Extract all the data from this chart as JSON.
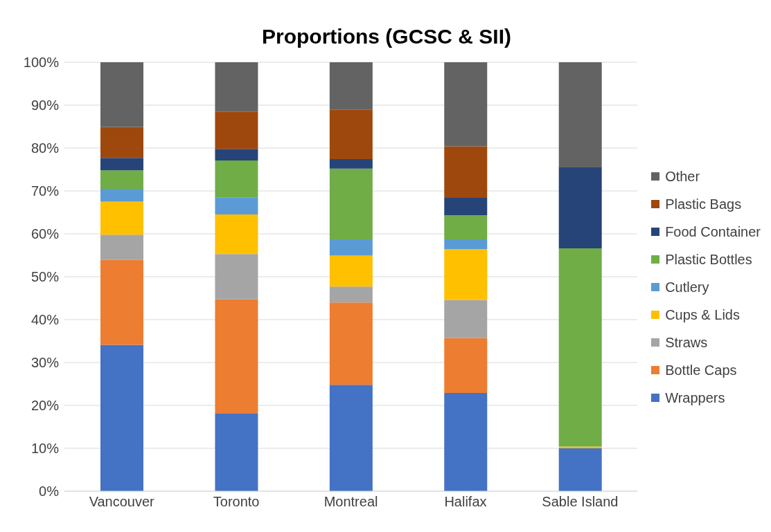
{
  "chart_data": {
    "type": "bar",
    "title": "Proportions (GCSC & SII)",
    "stacked": true,
    "categories": [
      "Vancouver",
      "Toronto",
      "Montreal",
      "Halifax",
      "Sable Island"
    ],
    "series": [
      {
        "name": "Wrappers",
        "color": "#4472c4",
        "values": [
          34.1,
          18.2,
          24.8,
          22.9,
          10.0
        ]
      },
      {
        "name": "Bottle Caps",
        "color": "#ed7d31",
        "values": [
          19.8,
          26.5,
          19.2,
          12.8,
          0
        ]
      },
      {
        "name": "Straws",
        "color": "#a5a5a5",
        "values": [
          5.9,
          10.6,
          3.7,
          8.9,
          0
        ]
      },
      {
        "name": "Cups & Lids",
        "color": "#ffc000",
        "values": [
          7.7,
          9.2,
          7.2,
          11.8,
          0.4
        ]
      },
      {
        "name": "Cutlery",
        "color": "#5b9bd5",
        "values": [
          3.0,
          4.0,
          3.8,
          2.3,
          0
        ]
      },
      {
        "name": "Plastic Bottles",
        "color": "#70ad47",
        "values": [
          4.3,
          8.6,
          16.5,
          5.6,
          46.2
        ]
      },
      {
        "name": "Food Container",
        "color": "#264478",
        "values": [
          2.9,
          2.7,
          2.2,
          4.1,
          18.9
        ]
      },
      {
        "name": "Plastic Bags",
        "color": "#9e480e",
        "values": [
          7.2,
          8.7,
          11.6,
          12.0,
          0
        ]
      },
      {
        "name": "Other",
        "color": "#636363",
        "values": [
          15.1,
          11.5,
          11.0,
          19.6,
          24.5
        ]
      }
    ],
    "ylim": [
      0,
      100
    ],
    "yticks": [
      {
        "value": 0,
        "label": "0%"
      },
      {
        "value": 10,
        "label": "10%"
      },
      {
        "value": 20,
        "label": "20%"
      },
      {
        "value": 30,
        "label": "30%"
      },
      {
        "value": 40,
        "label": "40%"
      },
      {
        "value": 50,
        "label": "50%"
      },
      {
        "value": 60,
        "label": "60%"
      },
      {
        "value": 70,
        "label": "70%"
      },
      {
        "value": 80,
        "label": "80%"
      },
      {
        "value": 90,
        "label": "90%"
      },
      {
        "value": 100,
        "label": "100%"
      }
    ],
    "grid": "y",
    "legend": "right"
  }
}
